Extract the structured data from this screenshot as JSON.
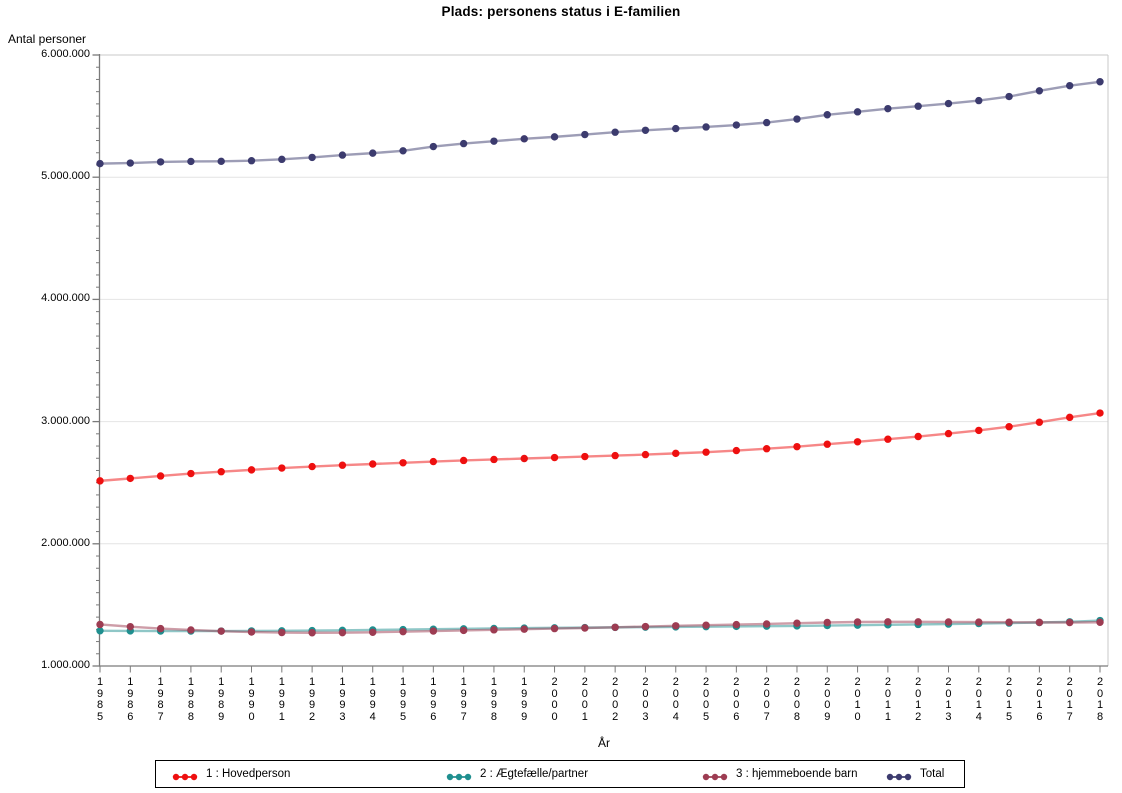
{
  "title": "Plads: personens status i E-familien",
  "chart_data": {
    "type": "line",
    "title": "Plads: personens status i E-familien",
    "xlabel": "År",
    "ylabel": "Antal personer",
    "ylim": [
      1000000,
      6000000
    ],
    "ytick_interval": 1000000,
    "yminor_interval": 100000,
    "grid": true,
    "legend_position": "bottom",
    "categories": [
      "1985",
      "1986",
      "1987",
      "1988",
      "1989",
      "1990",
      "1991",
      "1992",
      "1993",
      "1994",
      "1995",
      "1996",
      "1997",
      "1998",
      "1999",
      "2000",
      "2001",
      "2002",
      "2003",
      "2004",
      "2005",
      "2006",
      "2007",
      "2008",
      "2009",
      "2010",
      "2011",
      "2012",
      "2013",
      "2014",
      "2015",
      "2016",
      "2017",
      "2018"
    ],
    "series": [
      {
        "name": "1 : Hovedperson",
        "color": "#ee0f0f",
        "values": [
          2515000,
          2535000,
          2555000,
          2575000,
          2590000,
          2605000,
          2620000,
          2632000,
          2643000,
          2653000,
          2663000,
          2673000,
          2682000,
          2690000,
          2698000,
          2706000,
          2714000,
          2722000,
          2730000,
          2740000,
          2750000,
          2763000,
          2778000,
          2795000,
          2815000,
          2835000,
          2856000,
          2878000,
          2902000,
          2928000,
          2958000,
          2995000,
          3035000,
          3070000
        ]
      },
      {
        "name": "2 : Ægtefælle/partner",
        "color": "#1f8f8f",
        "values": [
          1288000,
          1287000,
          1286000,
          1286000,
          1286000,
          1287000,
          1288000,
          1290000,
          1292000,
          1295000,
          1298000,
          1301000,
          1304000,
          1307000,
          1310000,
          1312000,
          1314000,
          1316000,
          1318000,
          1320000,
          1322000,
          1324000,
          1326000,
          1328000,
          1331000,
          1334000,
          1337000,
          1340000,
          1343000,
          1347000,
          1351000,
          1356000,
          1362000,
          1372000
        ]
      },
      {
        "name": "3 : hjemmeboende barn",
        "color": "#9d3c52",
        "values": [
          1340000,
          1322000,
          1306000,
          1295000,
          1285000,
          1278000,
          1274000,
          1272000,
          1273000,
          1276000,
          1281000,
          1286000,
          1291000,
          1296000,
          1301000,
          1306000,
          1311000,
          1317000,
          1323000,
          1329000,
          1334000,
          1339000,
          1344000,
          1350000,
          1356000,
          1360000,
          1361000,
          1361000,
          1360000,
          1359000,
          1358000,
          1357000,
          1356000,
          1358000
        ]
      },
      {
        "name": "Total",
        "color": "#3c3b6e",
        "values": [
          5111000,
          5116000,
          5125000,
          5129000,
          5130000,
          5135000,
          5146000,
          5162000,
          5181000,
          5197000,
          5216000,
          5251000,
          5275000,
          5295000,
          5314000,
          5330000,
          5349000,
          5368000,
          5384000,
          5398000,
          5411000,
          5427000,
          5447000,
          5476000,
          5511000,
          5535000,
          5561000,
          5581000,
          5603000,
          5627000,
          5660000,
          5707000,
          5749000,
          5781000
        ]
      }
    ]
  }
}
